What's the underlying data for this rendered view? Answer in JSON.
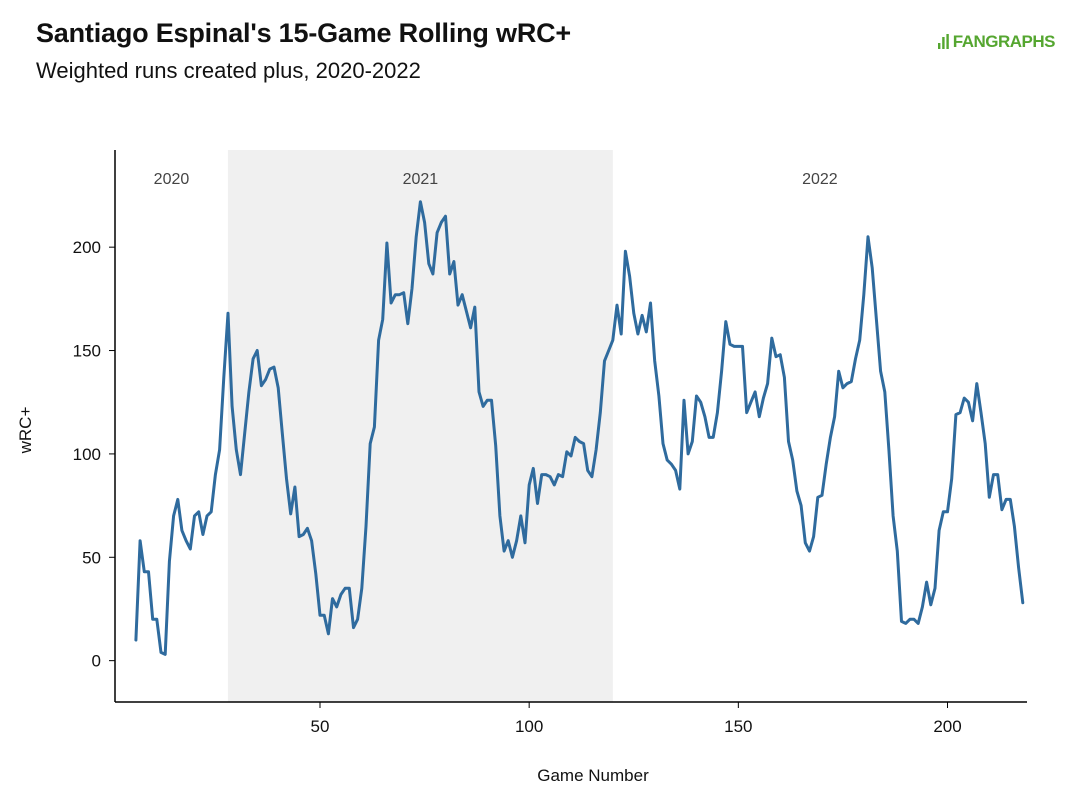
{
  "header": {
    "title": "Santiago Espinal's 15-Game Rolling wRC+",
    "subtitle": "Weighted runs created plus, 2020-2022",
    "logo_text": "FANGRAPHS"
  },
  "colors": {
    "line": "#2f6b9e",
    "shade": "#f0f0f0",
    "axis": "#000000",
    "logo": "#55a630"
  },
  "chart_data": {
    "type": "line",
    "title": "Santiago Espinal's 15-Game Rolling wRC+",
    "subtitle": "Weighted runs created plus, 2020-2022",
    "xlabel": "Game Number",
    "ylabel": "wRC+",
    "xlim": [
      1,
      219
    ],
    "ylim": [
      -20,
      247
    ],
    "xticks": [
      50,
      100,
      150,
      200
    ],
    "yticks": [
      0,
      50,
      100,
      150,
      200
    ],
    "grid": false,
    "season_bands": [
      {
        "label": "2020",
        "start": 1,
        "end": 28,
        "shaded": false
      },
      {
        "label": "2021",
        "start": 28,
        "end": 120,
        "shaded": true
      },
      {
        "label": "2022",
        "start": 120,
        "end": 219,
        "shaded": false
      }
    ],
    "series": [
      {
        "x": [
          6,
          7,
          8,
          9,
          10,
          11,
          12,
          13,
          14,
          15,
          16,
          17,
          18,
          19,
          20,
          21,
          22,
          23,
          24,
          25,
          26,
          27,
          28,
          29,
          30,
          31,
          32,
          33,
          34,
          35,
          36,
          37,
          38,
          39,
          40,
          41,
          42,
          43,
          44,
          45,
          46,
          47,
          48,
          49,
          50,
          51,
          52,
          53,
          54,
          55,
          56,
          57,
          58,
          59,
          60,
          61,
          62,
          63,
          64,
          65,
          66,
          67,
          68,
          69,
          70,
          71,
          72,
          73,
          74,
          75,
          76,
          77,
          78,
          79,
          80,
          81,
          82,
          83,
          84,
          85,
          86,
          87,
          88,
          89,
          90,
          91,
          92,
          93,
          94,
          95,
          96,
          97,
          98,
          99,
          100,
          101,
          102,
          103,
          104,
          105,
          106,
          107,
          108,
          109,
          110,
          111,
          112,
          113,
          114,
          115,
          116,
          117,
          118,
          119,
          120,
          121,
          122,
          123,
          124,
          125,
          126,
          127,
          128,
          129,
          130,
          131,
          132,
          133,
          134,
          135,
          136,
          137,
          138,
          139,
          140,
          141,
          142,
          143,
          144,
          145,
          146,
          147,
          148,
          149,
          150,
          151,
          152,
          153,
          154,
          155,
          156,
          157,
          158,
          159,
          160,
          161,
          162,
          163,
          164,
          165,
          166,
          167,
          168,
          169,
          170,
          171,
          172,
          173,
          174,
          175,
          176,
          177,
          178,
          179,
          180,
          181,
          182,
          183,
          184,
          185,
          186,
          187,
          188,
          189,
          190,
          191,
          192,
          193,
          194,
          195,
          196,
          197,
          198,
          199,
          200,
          201,
          202,
          203,
          204,
          205,
          206,
          207,
          208,
          209,
          210,
          211,
          212,
          213,
          214,
          215,
          216,
          217,
          218
        ],
        "values": [
          10,
          58,
          43,
          43,
          20,
          20,
          4,
          3,
          48,
          70,
          78,
          63,
          58,
          54,
          70,
          72,
          61,
          70,
          72,
          90,
          102,
          137,
          168,
          123,
          102,
          90,
          110,
          130,
          146,
          150,
          133,
          136,
          141,
          142,
          132,
          110,
          88,
          71,
          84,
          60,
          61,
          64,
          58,
          42,
          22,
          22,
          13,
          30,
          26,
          32,
          35,
          35,
          16,
          20,
          35,
          65,
          105,
          113,
          155,
          165,
          202,
          173,
          177,
          177,
          178,
          163,
          180,
          205,
          222,
          212,
          192,
          187,
          207,
          212,
          215,
          187,
          193,
          172,
          177,
          169,
          161,
          171,
          130,
          123,
          126,
          126,
          104,
          70,
          53,
          58,
          50,
          58,
          70,
          57,
          85,
          93,
          76,
          90,
          90,
          89,
          85,
          90,
          89,
          101,
          99,
          108,
          106,
          105,
          92,
          89,
          102,
          120,
          145,
          150,
          155,
          172,
          158,
          198,
          186,
          168,
          158,
          167,
          159,
          173,
          145,
          128,
          105,
          97,
          95,
          92,
          83,
          126,
          100,
          106,
          128,
          125,
          118,
          108,
          108,
          120,
          140,
          164,
          153,
          152,
          152,
          152,
          120,
          125,
          130,
          118,
          127,
          134,
          156,
          147,
          148,
          137,
          106,
          97,
          82,
          75,
          57,
          53,
          60,
          79,
          80,
          95,
          108,
          118,
          140,
          132,
          134,
          135,
          146,
          155,
          177,
          205,
          190,
          165,
          140,
          130,
          102,
          70,
          53,
          19,
          18,
          20,
          20,
          18,
          26,
          38,
          27,
          35,
          63,
          72,
          72,
          88,
          119,
          120,
          127,
          125,
          116,
          134,
          120,
          105,
          79,
          90,
          90,
          73,
          78,
          78,
          65,
          45,
          28
        ]
      }
    ]
  }
}
